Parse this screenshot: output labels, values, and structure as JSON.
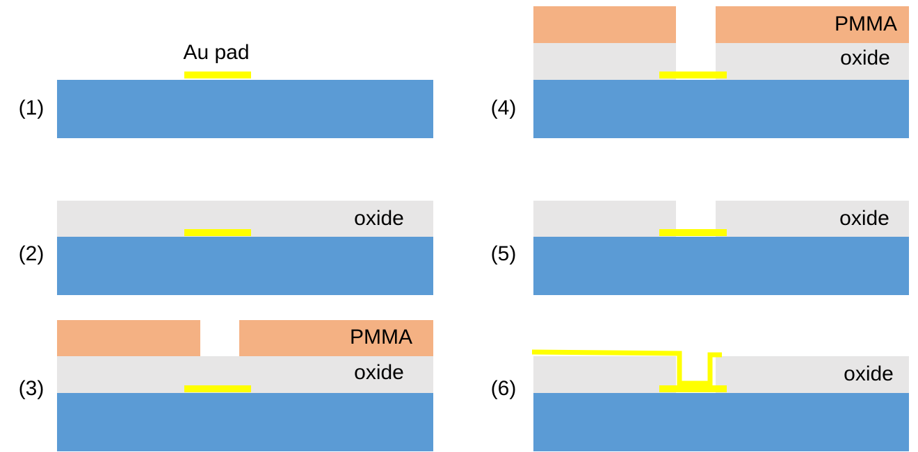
{
  "steps": [
    {
      "label": "(1)",
      "annotation": "Au pad"
    },
    {
      "label": "(2)",
      "layers": [
        "oxide"
      ]
    },
    {
      "label": "(3)",
      "layers": [
        "PMMA",
        "oxide"
      ]
    },
    {
      "label": "(4)",
      "layers": [
        "PMMA",
        "oxide"
      ]
    },
    {
      "label": "(5)",
      "layers": [
        "oxide"
      ]
    },
    {
      "label": "(6)",
      "layers": [
        "oxide"
      ]
    }
  ]
}
